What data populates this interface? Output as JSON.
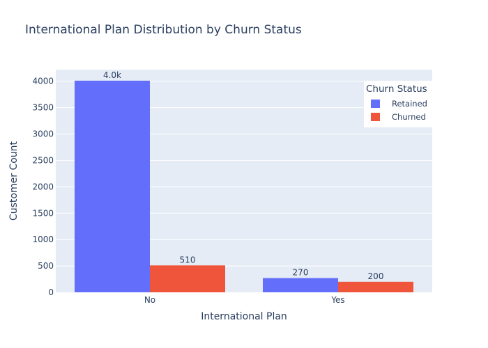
{
  "chart_data": {
    "type": "bar",
    "title": "International Plan Distribution by Churn Status",
    "xlabel": "International Plan",
    "ylabel": "Customer Count",
    "categories": [
      "No",
      "Yes"
    ],
    "series": [
      {
        "name": "Retained",
        "values": [
          4010,
          270
        ],
        "labels": [
          "4.0k",
          "270"
        ],
        "color": "#636efa"
      },
      {
        "name": "Churned",
        "values": [
          510,
          200
        ],
        "labels": [
          "510",
          "200"
        ],
        "color": "#ef553b"
      }
    ],
    "ylim": [
      0,
      4220
    ],
    "yticks": [
      0,
      500,
      1000,
      1500,
      2000,
      2500,
      3000,
      3500,
      4000
    ],
    "grid": true,
    "legend": {
      "title": "Churn Status",
      "position": "top-right"
    },
    "background": "#e5ecf6",
    "text_color": "#2a3f5f"
  }
}
